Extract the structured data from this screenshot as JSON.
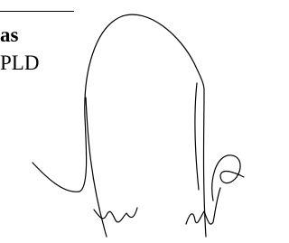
{
  "document": {
    "name": "as",
    "organization": "PLD"
  }
}
